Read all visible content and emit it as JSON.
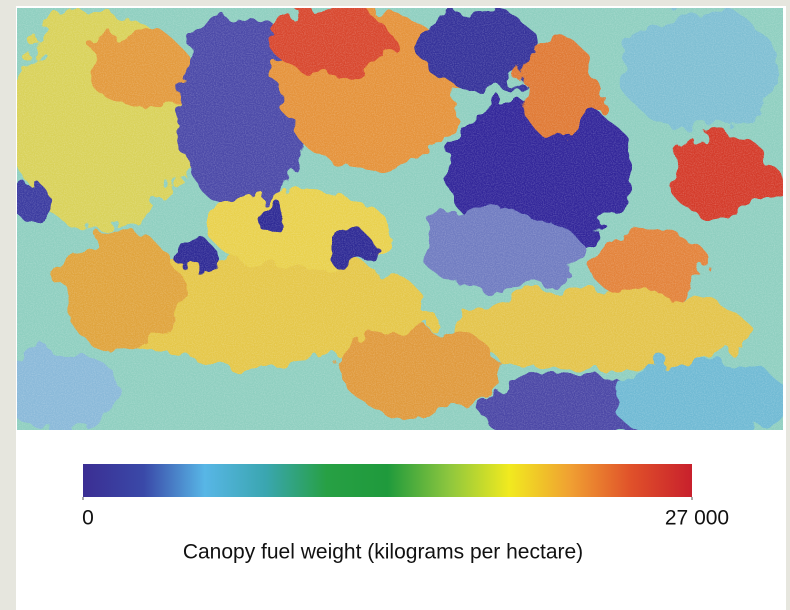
{
  "colorbar": {
    "colors": [
      "#3b2e93",
      "#3a49a8",
      "#58b6e6",
      "#3aa6b0",
      "#27a044",
      "#1f9a3c",
      "#8cc63e",
      "#f1ea1f",
      "#f0a032",
      "#e0512a",
      "#c8202c"
    ],
    "lim": [
      0,
      27000
    ],
    "ticks": [
      0,
      {
        "value": 27000,
        "label": "27 000"
      }
    ],
    "label": "Canopy fuel weight (kilograms per hectare)"
  }
}
